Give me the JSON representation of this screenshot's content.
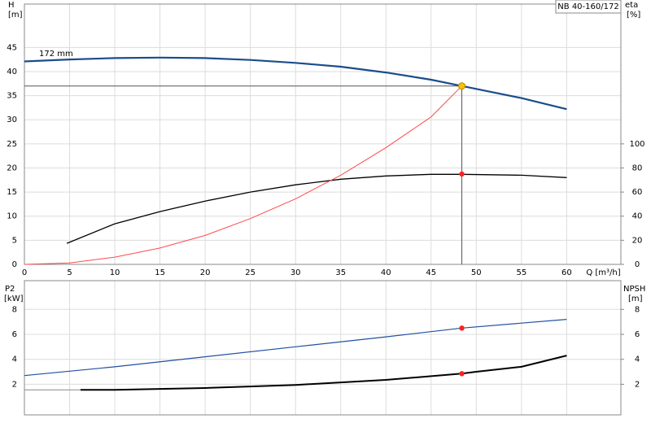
{
  "chart_data": [
    {
      "type": "line",
      "title": "NB 40-160/172",
      "ylabel": "H",
      "ylabel_unit": "[m]",
      "y2label": "eta",
      "y2label_unit": "[%]",
      "xlabel": "Q [m³/h]",
      "annotation": "172 mm",
      "xlim": [
        0,
        66
      ],
      "xticks": [
        0,
        5,
        10,
        15,
        20,
        25,
        30,
        35,
        40,
        45,
        50,
        55,
        60
      ],
      "ylim": [
        0,
        54
      ],
      "yticks": [
        0,
        5,
        10,
        15,
        20,
        25,
        30,
        35,
        40,
        45
      ],
      "y2lim": [
        0,
        216
      ],
      "y2ticks": [
        0,
        20,
        40,
        60,
        80,
        100
      ],
      "grid": true,
      "series": [
        {
          "color": "#1c4c8c",
          "width": 2.2,
          "x": [
            0,
            5,
            10,
            15,
            20,
            25,
            30,
            35,
            40,
            45,
            48.4,
            50,
            55,
            60
          ],
          "values": [
            42.1,
            42.5,
            42.8,
            42.9,
            42.8,
            42.4,
            41.8,
            41.0,
            39.8,
            38.3,
            37.0,
            36.4,
            34.5,
            32.2
          ]
        },
        {
          "color": "#000000",
          "width": 1.3,
          "axis": "y2",
          "x": [
            4.7,
            10,
            15,
            20,
            25,
            30,
            35,
            40,
            45,
            48.4,
            55,
            60
          ],
          "values": [
            17.5,
            33.7,
            43.8,
            52.5,
            60,
            66,
            70.7,
            73.4,
            74.7,
            74.7,
            74,
            72
          ]
        },
        {
          "color": "#ff4a4a",
          "width": 1,
          "x": [
            0,
            5,
            10,
            15,
            20,
            25,
            30,
            35,
            40,
            45,
            48.4
          ],
          "values": [
            0,
            0.3,
            1.5,
            3.4,
            6.0,
            9.5,
            13.6,
            18.5,
            24.2,
            30.6,
            37.0
          ]
        }
      ],
      "points": [
        {
          "x": 48.4,
          "y": 37.0,
          "color": "#f5c400",
          "guides": true
        },
        {
          "x": 48.4,
          "y": 75,
          "axis": "y2",
          "color": "#ff2020"
        }
      ]
    },
    {
      "type": "line",
      "ylabel": "P2",
      "ylabel_unit": "[kW]",
      "y2label": "NPSH",
      "y2label_unit": "[m]",
      "xlim": [
        0,
        66
      ],
      "ylim": [
        -0.45,
        10.3
      ],
      "yticks": [
        2,
        4,
        6,
        8
      ],
      "y2lim": [
        -0.45,
        10.3
      ],
      "y2ticks": [
        2,
        4,
        6,
        8
      ],
      "grid": true,
      "series": [
        {
          "color": "#2050a0",
          "width": 1.2,
          "x": [
            0,
            10,
            20,
            30,
            40,
            48.4,
            60
          ],
          "values": [
            2.7,
            3.4,
            4.2,
            5.0,
            5.8,
            6.5,
            7.2
          ]
        },
        {
          "color": "#000000",
          "width": 2,
          "axis": "y2",
          "extend_left": true,
          "x": [
            6.2,
            10,
            20,
            30,
            40,
            48.4,
            50,
            55,
            60
          ],
          "values": [
            1.55,
            1.55,
            1.7,
            1.95,
            2.35,
            2.85,
            3.0,
            3.4,
            4.3
          ]
        }
      ],
      "points": [
        {
          "x": 48.4,
          "y": 6.5,
          "color": "#ff2020"
        },
        {
          "x": 48.4,
          "y": 2.85,
          "axis": "y2",
          "color": "#ff2020"
        }
      ]
    }
  ]
}
